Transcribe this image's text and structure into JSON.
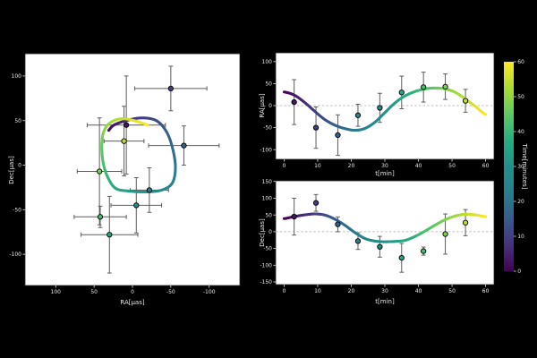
{
  "figure": {
    "background": "#000000",
    "panel_background": "#ffffff",
    "text_color": "#e8e8e8",
    "spine_color": "#2a2a2a"
  },
  "styles": {
    "errorbar_color": "#5c5c5c",
    "zero_line_color": "#aaaaaa",
    "marker_edge_color": "#000000",
    "viridis_stops": [
      [
        0,
        "#440154"
      ],
      [
        0.125,
        "#46327e"
      ],
      [
        0.25,
        "#365c8d"
      ],
      [
        0.375,
        "#277f8e"
      ],
      [
        0.5,
        "#21918c"
      ],
      [
        0.625,
        "#27ad81"
      ],
      [
        0.75,
        "#5ec962"
      ],
      [
        0.875,
        "#aadc32"
      ],
      [
        1,
        "#fde725"
      ]
    ]
  },
  "colorbar": {
    "label": "Time[minutes]",
    "min": 0,
    "max": 60,
    "ticks": [
      0,
      10,
      20,
      30,
      40,
      50,
      60
    ]
  },
  "observations": {
    "t": [
      3,
      9.5,
      16,
      22,
      28.5,
      35,
      41.5,
      48,
      54
    ],
    "ra": [
      8,
      -50,
      -67,
      -22,
      -5,
      30,
      42,
      43,
      11
    ],
    "ra_err": [
      51,
      47,
      46,
      25,
      33,
      37,
      34,
      29,
      26
    ],
    "dec": [
      45,
      86,
      22,
      -28,
      -45,
      -78,
      -58,
      -7,
      27
    ],
    "dec_err": [
      55,
      25,
      22,
      25,
      31,
      43,
      12,
      60,
      39
    ]
  },
  "model_track": {
    "t": [
      0,
      3,
      6,
      9,
      12,
      15,
      18,
      21,
      24,
      27,
      30,
      33,
      36,
      39,
      42,
      45,
      48,
      51,
      54,
      57,
      60
    ],
    "ra": [
      31,
      24,
      8,
      -12,
      -31,
      -44,
      -52,
      -56,
      -52,
      -38,
      -16,
      6,
      22,
      32,
      38,
      40,
      38,
      30,
      15,
      -2,
      -20
    ],
    "dec": [
      39,
      45,
      50,
      53,
      50,
      38,
      20,
      -2,
      -20,
      -28,
      -30,
      -29,
      -26,
      -14,
      2,
      20,
      36,
      47,
      52,
      50,
      45
    ]
  },
  "chart_data": [
    {
      "id": "sky",
      "type": "scatter",
      "xlabel": "RA[μas]",
      "ylabel": "Dec[μas]",
      "xlim": [
        140,
        -140
      ],
      "ylim": [
        -135,
        125
      ],
      "x_axis_inverted": true,
      "xticks": [
        100,
        50,
        0,
        -50,
        -100
      ],
      "yticks": [
        -100,
        -50,
        0,
        50,
        100
      ],
      "colormap": "viridis",
      "color_by": "time",
      "points_from": "observations",
      "model_from": "model_track"
    },
    {
      "id": "ra_vs_t",
      "type": "line",
      "xlabel": "t[min]",
      "ylabel": "RA[μas]",
      "xlim": [
        -2.5,
        62.5
      ],
      "ylim": [
        -122,
        120
      ],
      "xticks": [
        0,
        10,
        20,
        30,
        40,
        50,
        60
      ],
      "yticks": [
        -100,
        -50,
        0,
        50,
        100
      ],
      "zero_line": true,
      "series_key": "ra",
      "colormap": "viridis",
      "color_by": "time"
    },
    {
      "id": "dec_vs_t",
      "type": "line",
      "xlabel": "t[min]",
      "ylabel": "Dec[μas]",
      "xlim": [
        -2.5,
        62.5
      ],
      "ylim": [
        -158,
        152
      ],
      "xticks": [
        0,
        10,
        20,
        30,
        40,
        50,
        60
      ],
      "yticks": [
        -150,
        -100,
        -50,
        0,
        50,
        100,
        150
      ],
      "zero_line": true,
      "series_key": "dec",
      "colormap": "viridis",
      "color_by": "time"
    }
  ]
}
